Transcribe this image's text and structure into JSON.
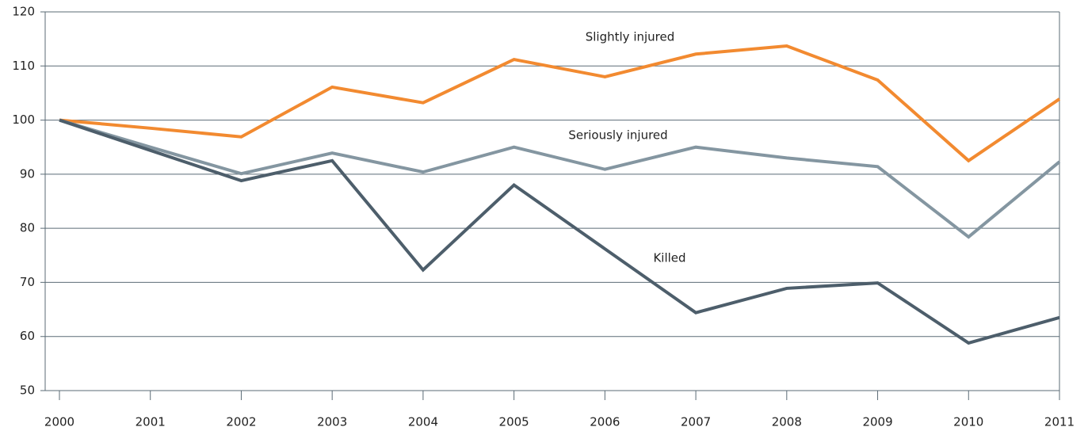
{
  "chart_data": {
    "type": "line",
    "x": [
      2000,
      2001,
      2002,
      2003,
      2004,
      2005,
      2006,
      2007,
      2008,
      2009,
      2010,
      2011
    ],
    "series": [
      {
        "name": "Slightly injured",
        "color": "#f28a30",
        "values": [
          100,
          98.5,
          96.9,
          106.1,
          103.2,
          111.2,
          108,
          112.2,
          113.7,
          107.4,
          92.5,
          103.9
        ]
      },
      {
        "name": "Seriously injured",
        "color": "#8496a1",
        "values": [
          100,
          95,
          90.1,
          93.9,
          90.4,
          95,
          90.9,
          95,
          93,
          91.4,
          78.4,
          92.3
        ]
      },
      {
        "name": "Killed",
        "color": "#4d5e6b",
        "values": [
          100,
          94.4,
          88.8,
          92.5,
          72.3,
          88,
          76.2,
          64.4,
          68.9,
          69.9,
          58.8,
          63.5
        ]
      }
    ],
    "xlim": [
      2000,
      2011
    ],
    "xticks": [
      2000,
      2001,
      2002,
      2003,
      2004,
      2005,
      2006,
      2007,
      2008,
      2009,
      2010,
      2011
    ],
    "ylim": [
      50,
      120
    ],
    "yticks": [
      50,
      60,
      70,
      80,
      90,
      100,
      110,
      120
    ],
    "grid": true
  }
}
